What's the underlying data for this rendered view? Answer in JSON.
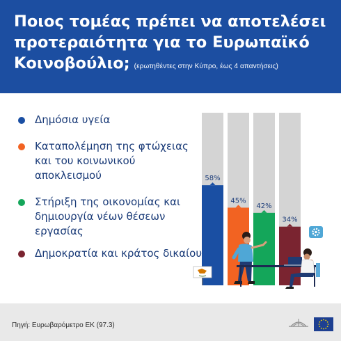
{
  "title_line1": "Ποιος τομέας πρέπει να αποτελέσει",
  "title_line2": "προτεραιότητα για το Ευρωπαϊκό",
  "title_line3": "Κοινοβούλιο;",
  "subtitle": "(ερωτηθέντες στην Κύπρο, έως 4 απαντήσεις)",
  "legend": [
    {
      "label": "Δημόσια υγεία"
    },
    {
      "label": "Καταπολέμηση της φτώχειας και του κοινωνικού αποκλεισμού"
    },
    {
      "label": "Στήριξη της οικονομίας και δημιουργία νέων θέσεων εργασίας"
    },
    {
      "label": "Δημοκρατία και κράτος δικαίου"
    }
  ],
  "source": "Πηγή: Ευρωβαρόμετρο ΕΚ (97.3)",
  "colors": {
    "header": "#1c4ea1",
    "track": "#d4d4d4",
    "series": [
      "#1a4fa3",
      "#f26322",
      "#14a65a",
      "#7a2430"
    ]
  },
  "chart_data": {
    "type": "bar",
    "categories": [
      "Δημόσια υγεία",
      "Καταπολέμηση της φτώχειας και του κοινωνικού αποκλεισμού",
      "Στήριξη της οικονομίας και δημιουργία νέων θέσεων εργασίας",
      "Δημοκρατία και κράτος δικαίου"
    ],
    "values": [
      58,
      45,
      42,
      34
    ],
    "value_labels": [
      "58%",
      "45%",
      "42%",
      "34%"
    ],
    "ylim": [
      0,
      100
    ],
    "grid": false,
    "legend": "left"
  }
}
